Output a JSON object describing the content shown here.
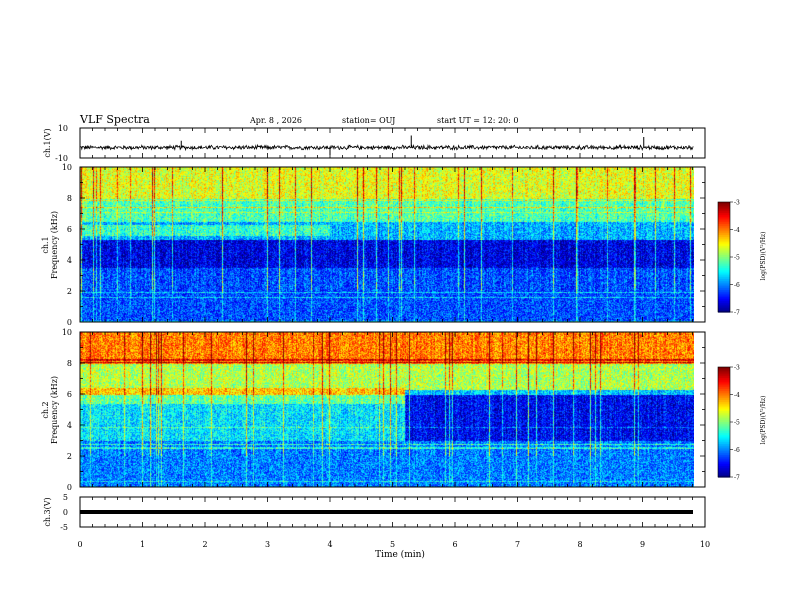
{
  "header": {
    "title": "VLF Spectra",
    "date": "Apr. 8 , 2026",
    "station": "station= OUJ",
    "start": "start UT =  12: 20: 0"
  },
  "colors": {
    "background": "#ffffff",
    "axes": "#000000",
    "colormap": [
      "#00007f",
      "#0000ff",
      "#007fff",
      "#00ffff",
      "#7fff7f",
      "#ffff00",
      "#ff7f00",
      "#ff0000",
      "#7f0000"
    ]
  },
  "chart_data": [
    {
      "id": "ch1-waveform",
      "type": "line",
      "ylabel": "ch.1(V)",
      "ylim": [
        -10,
        10
      ],
      "yticks": [
        10,
        -10
      ],
      "xlim": [
        0,
        10
      ],
      "baseline": -3,
      "noise_amplitude": 1.2,
      "spikes": [
        {
          "x": 1.62,
          "y": 1.5
        },
        {
          "x": 4.0,
          "y": -8.0
        },
        {
          "x": 5.3,
          "y": 5.0
        },
        {
          "x": 7.15,
          "y": -4.0
        },
        {
          "x": 9.02,
          "y": 4.0
        }
      ]
    },
    {
      "id": "ch1-spectrogram",
      "type": "heatmap",
      "ylabel": "Frequency (kHz)",
      "channel_label": "ch.1",
      "ylim": [
        0,
        10
      ],
      "yticks": [
        0,
        2,
        4,
        6,
        8,
        10
      ],
      "xlim": [
        0,
        9.83
      ],
      "colorbar": {
        "label": "log(PSD)(V²/Hz)",
        "range": [
          -7,
          -3
        ],
        "ticks": [
          -3,
          -4,
          -5,
          -6,
          -7
        ]
      },
      "description_levels": [
        {
          "freq_range": [
            8,
            10
          ],
          "level": -4.6
        },
        {
          "freq_range": [
            6.5,
            8
          ],
          "level": -5.2
        },
        {
          "freq_range": [
            5.3,
            6.5
          ],
          "level": -5.8
        },
        {
          "freq_range": [
            3.5,
            5.3
          ],
          "level": -6.6
        },
        {
          "freq_range": [
            0,
            3.5
          ],
          "level": -6.2
        }
      ]
    },
    {
      "id": "ch2-spectrogram",
      "type": "heatmap",
      "ylabel": "Frequency (kHz)",
      "channel_label": "ch.2",
      "ylim": [
        0,
        10
      ],
      "yticks": [
        0,
        2,
        4,
        6,
        8,
        10
      ],
      "xlim": [
        0,
        9.83
      ],
      "colorbar": {
        "label": "log(PSD)(V²/Hz)",
        "range": [
          -7,
          -3
        ],
        "ticks": [
          -3,
          -4,
          -5,
          -6,
          -7
        ]
      },
      "description_levels": [
        {
          "freq_range": [
            8,
            10
          ],
          "level": -4.0
        },
        {
          "freq_range": [
            6,
            8
          ],
          "level": -4.8
        },
        {
          "freq_range": [
            3,
            6
          ],
          "level": -5.6
        },
        {
          "freq_range": [
            0,
            3
          ],
          "level": -6.0
        }
      ]
    },
    {
      "id": "ch3-waveform",
      "type": "line",
      "ylabel": "ch.3(V)",
      "ylim": [
        -5,
        5
      ],
      "yticks": [
        5,
        0,
        -5
      ],
      "xlim": [
        0,
        10
      ],
      "baseline": 0
    }
  ],
  "xaxis": {
    "label": "Time (min)",
    "range": [
      0,
      10
    ],
    "ticks": [
      "0",
      "1",
      "2",
      "3",
      "4",
      "5",
      "6",
      "7",
      "8",
      "9",
      "10"
    ]
  }
}
